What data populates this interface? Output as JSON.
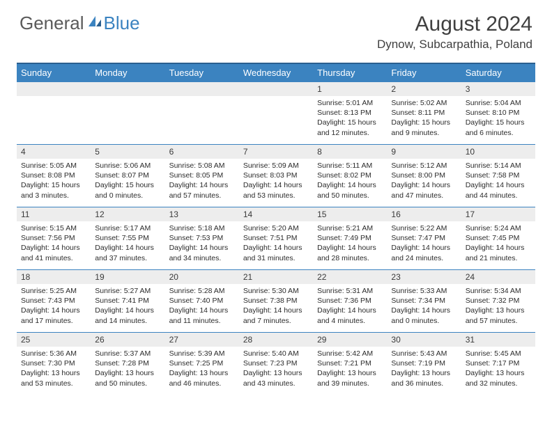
{
  "logo": {
    "general": "General",
    "blue": "Blue"
  },
  "title": "August 2024",
  "location": "Dynow, Subcarpathia, Poland",
  "colors": {
    "header_bg": "#3b83c0",
    "header_border_top": "#2a5f8f",
    "cell_border": "#3b83c0",
    "daynum_bg": "#ededed",
    "text": "#2b2b2b",
    "title_text": "#404040",
    "logo_gray": "#5a5a5a",
    "logo_blue": "#3b83c0",
    "background": "#ffffff"
  },
  "weekdays": [
    "Sunday",
    "Monday",
    "Tuesday",
    "Wednesday",
    "Thursday",
    "Friday",
    "Saturday"
  ],
  "weeks": [
    [
      null,
      null,
      null,
      null,
      {
        "n": "1",
        "sr": "5:01 AM",
        "ss": "8:13 PM",
        "dl": "15 hours and 12 minutes."
      },
      {
        "n": "2",
        "sr": "5:02 AM",
        "ss": "8:11 PM",
        "dl": "15 hours and 9 minutes."
      },
      {
        "n": "3",
        "sr": "5:04 AM",
        "ss": "8:10 PM",
        "dl": "15 hours and 6 minutes."
      }
    ],
    [
      {
        "n": "4",
        "sr": "5:05 AM",
        "ss": "8:08 PM",
        "dl": "15 hours and 3 minutes."
      },
      {
        "n": "5",
        "sr": "5:06 AM",
        "ss": "8:07 PM",
        "dl": "15 hours and 0 minutes."
      },
      {
        "n": "6",
        "sr": "5:08 AM",
        "ss": "8:05 PM",
        "dl": "14 hours and 57 minutes."
      },
      {
        "n": "7",
        "sr": "5:09 AM",
        "ss": "8:03 PM",
        "dl": "14 hours and 53 minutes."
      },
      {
        "n": "8",
        "sr": "5:11 AM",
        "ss": "8:02 PM",
        "dl": "14 hours and 50 minutes."
      },
      {
        "n": "9",
        "sr": "5:12 AM",
        "ss": "8:00 PM",
        "dl": "14 hours and 47 minutes."
      },
      {
        "n": "10",
        "sr": "5:14 AM",
        "ss": "7:58 PM",
        "dl": "14 hours and 44 minutes."
      }
    ],
    [
      {
        "n": "11",
        "sr": "5:15 AM",
        "ss": "7:56 PM",
        "dl": "14 hours and 41 minutes."
      },
      {
        "n": "12",
        "sr": "5:17 AM",
        "ss": "7:55 PM",
        "dl": "14 hours and 37 minutes."
      },
      {
        "n": "13",
        "sr": "5:18 AM",
        "ss": "7:53 PM",
        "dl": "14 hours and 34 minutes."
      },
      {
        "n": "14",
        "sr": "5:20 AM",
        "ss": "7:51 PM",
        "dl": "14 hours and 31 minutes."
      },
      {
        "n": "15",
        "sr": "5:21 AM",
        "ss": "7:49 PM",
        "dl": "14 hours and 28 minutes."
      },
      {
        "n": "16",
        "sr": "5:22 AM",
        "ss": "7:47 PM",
        "dl": "14 hours and 24 minutes."
      },
      {
        "n": "17",
        "sr": "5:24 AM",
        "ss": "7:45 PM",
        "dl": "14 hours and 21 minutes."
      }
    ],
    [
      {
        "n": "18",
        "sr": "5:25 AM",
        "ss": "7:43 PM",
        "dl": "14 hours and 17 minutes."
      },
      {
        "n": "19",
        "sr": "5:27 AM",
        "ss": "7:41 PM",
        "dl": "14 hours and 14 minutes."
      },
      {
        "n": "20",
        "sr": "5:28 AM",
        "ss": "7:40 PM",
        "dl": "14 hours and 11 minutes."
      },
      {
        "n": "21",
        "sr": "5:30 AM",
        "ss": "7:38 PM",
        "dl": "14 hours and 7 minutes."
      },
      {
        "n": "22",
        "sr": "5:31 AM",
        "ss": "7:36 PM",
        "dl": "14 hours and 4 minutes."
      },
      {
        "n": "23",
        "sr": "5:33 AM",
        "ss": "7:34 PM",
        "dl": "14 hours and 0 minutes."
      },
      {
        "n": "24",
        "sr": "5:34 AM",
        "ss": "7:32 PM",
        "dl": "13 hours and 57 minutes."
      }
    ],
    [
      {
        "n": "25",
        "sr": "5:36 AM",
        "ss": "7:30 PM",
        "dl": "13 hours and 53 minutes."
      },
      {
        "n": "26",
        "sr": "5:37 AM",
        "ss": "7:28 PM",
        "dl": "13 hours and 50 minutes."
      },
      {
        "n": "27",
        "sr": "5:39 AM",
        "ss": "7:25 PM",
        "dl": "13 hours and 46 minutes."
      },
      {
        "n": "28",
        "sr": "5:40 AM",
        "ss": "7:23 PM",
        "dl": "13 hours and 43 minutes."
      },
      {
        "n": "29",
        "sr": "5:42 AM",
        "ss": "7:21 PM",
        "dl": "13 hours and 39 minutes."
      },
      {
        "n": "30",
        "sr": "5:43 AM",
        "ss": "7:19 PM",
        "dl": "13 hours and 36 minutes."
      },
      {
        "n": "31",
        "sr": "5:45 AM",
        "ss": "7:17 PM",
        "dl": "13 hours and 32 minutes."
      }
    ]
  ],
  "labels": {
    "sunrise": "Sunrise:",
    "sunset": "Sunset:",
    "daylight": "Daylight:"
  }
}
